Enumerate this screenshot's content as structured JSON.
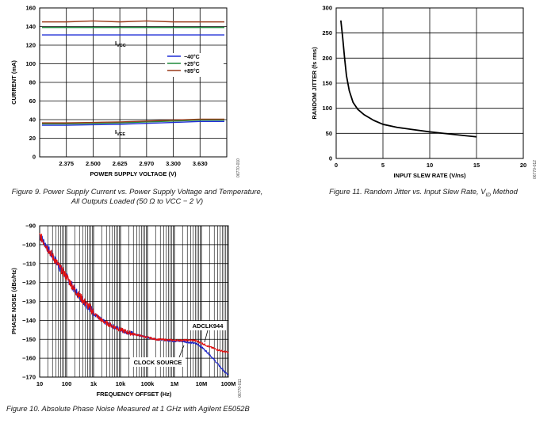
{
  "chart_data": [
    {
      "id": "fig9",
      "type": "line",
      "caption": "Figure 9. Power Supply Current vs. Power Supply Voltage and Temperature, All Outputs Loaded (50 Ω to VCC − 2 V)",
      "caption_lines": [
        "Figure 9. Power Supply Current vs. Power Supply Voltage and Temperature,",
        "All Outputs Loaded (50 Ω to VCC − 2 V)"
      ],
      "code": "06770-010",
      "xlabel": "POWER SUPPLY VOLTAGE (V)",
      "ylabel": "CURRENT (mA)",
      "categories": [
        "2.375",
        "2.500",
        "2.625",
        "2.970",
        "3.300",
        "3.630"
      ],
      "ylim": [
        0,
        160
      ],
      "yticks": [
        "0",
        "20",
        "40",
        "60",
        "80",
        "100",
        "120",
        "140",
        "160"
      ],
      "grid": true,
      "legend_position": "right",
      "series": [
        {
          "name": "−40°C",
          "color": "#1f2dd6",
          "group": "IVCC",
          "values": [
            131,
            131,
            131,
            131,
            131,
            131
          ]
        },
        {
          "name": "+25°C",
          "color": "#1f8a3c",
          "group": "IVCC",
          "values": [
            139,
            139,
            139,
            139,
            139,
            139
          ]
        },
        {
          "name": "+85°C",
          "color": "#9a3a1a",
          "group": "IVCC",
          "values": [
            145,
            146,
            145,
            146,
            145,
            145
          ]
        },
        {
          "name": "−40°C",
          "color": "#1f2dd6",
          "group": "IVEE",
          "values": [
            34,
            34.5,
            35,
            36,
            37,
            38
          ]
        },
        {
          "name": "+25°C",
          "color": "#1f8a3c",
          "group": "IVEE",
          "values": [
            35.5,
            36,
            36.5,
            37.5,
            38.5,
            39.5
          ]
        },
        {
          "name": "+85°C",
          "color": "#9a3a1a",
          "group": "IVEE",
          "values": [
            36.5,
            37,
            37.5,
            38.5,
            39.5,
            40.5
          ]
        }
      ],
      "annotations": [
        {
          "text": "I",
          "sub": "VCC"
        },
        {
          "text": "I",
          "sub": "VEE"
        }
      ]
    },
    {
      "id": "fig11",
      "type": "line",
      "caption": "Figure 11. Random Jitter vs. Input Slew Rate, VID Method",
      "caption_main": "Figure 11. Random Jitter vs. Input Slew Rate, V",
      "caption_sub": "ID",
      "caption_tail": " Method",
      "code": "06770-012",
      "xlabel": "INPUT SLEW RATE (V/ns)",
      "ylabel": "RANDOM JITTER (fs rms)",
      "xlim": [
        0,
        20
      ],
      "ylim": [
        0,
        300
      ],
      "xticks": [
        "0",
        "5",
        "10",
        "15",
        "20"
      ],
      "yticks": [
        "0",
        "50",
        "100",
        "150",
        "200",
        "250",
        "300"
      ],
      "grid": true,
      "series": [
        {
          "name": "",
          "color": "#000000",
          "x": [
            0.5,
            0.7,
            0.9,
            1.1,
            1.4,
            1.8,
            2.3,
            3.0,
            4.0,
            5.0,
            6.5,
            8.0,
            10.0,
            12.0,
            14.0,
            15.0
          ],
          "y": [
            275,
            240,
            200,
            165,
            135,
            112,
            98,
            87,
            76,
            68,
            62,
            58,
            53,
            49,
            45,
            43
          ]
        }
      ]
    },
    {
      "id": "fig10",
      "type": "line",
      "caption": "Figure 10. Absolute Phase Noise Measured at 1 GHz with Agilent E5052B",
      "code": "06770-011",
      "xlabel": "FREQUENCY OFFSET (Hz)",
      "ylabel": "PHASE NOISE (dBc/Hz)",
      "xscale": "log",
      "xlim": [
        10,
        100000000
      ],
      "xticks": [
        "10",
        "100",
        "1k",
        "10k",
        "100k",
        "1M",
        "10M",
        "100M"
      ],
      "ylim": [
        -170,
        -90
      ],
      "yticks": [
        "−90",
        "−100",
        "−110",
        "−120",
        "−130",
        "−140",
        "−150",
        "−160",
        "−170"
      ],
      "grid": true,
      "series": [
        {
          "name": "ADCLK944",
          "color": "#e01010",
          "x": [
            10,
            15,
            20,
            30,
            50,
            70,
            100,
            150,
            200,
            300,
            500,
            700,
            1000,
            2000,
            3000,
            5000,
            10000,
            20000,
            50000,
            100000,
            200000,
            500000,
            1000000,
            2000000,
            3000000,
            5000000,
            7000000,
            10000000,
            20000000,
            50000000,
            100000000
          ],
          "y": [
            -95,
            -99,
            -102,
            -106,
            -111,
            -114,
            -117,
            -121,
            -124,
            -127,
            -131,
            -133,
            -136,
            -140,
            -141.5,
            -143,
            -145,
            -146.5,
            -148,
            -149,
            -150,
            -150.3,
            -150.5,
            -150.5,
            -150.5,
            -150.5,
            -151,
            -152,
            -154,
            -156,
            -157
          ]
        },
        {
          "name": "CLOCK SOURCE",
          "color": "#1a22c8",
          "x": [
            10,
            15,
            20,
            30,
            50,
            70,
            100,
            150,
            200,
            300,
            500,
            700,
            1000,
            2000,
            3000,
            5000,
            10000,
            20000,
            50000,
            100000,
            200000,
            500000,
            1000000,
            2000000,
            3000000,
            5000000,
            7000000,
            10000000,
            20000000,
            40000000,
            70000000,
            100000000
          ],
          "y": [
            -95,
            -99,
            -102,
            -106,
            -111,
            -114,
            -117,
            -121,
            -124,
            -127,
            -131,
            -133,
            -136,
            -140,
            -141.5,
            -143,
            -145,
            -146.5,
            -148,
            -149,
            -150,
            -150.5,
            -151,
            -151,
            -151.5,
            -152,
            -152.5,
            -154,
            -158,
            -163,
            -167,
            -169
          ]
        }
      ],
      "annotations": [
        {
          "text": "ADCLK944"
        },
        {
          "text": "CLOCK SOURCE"
        }
      ]
    }
  ]
}
